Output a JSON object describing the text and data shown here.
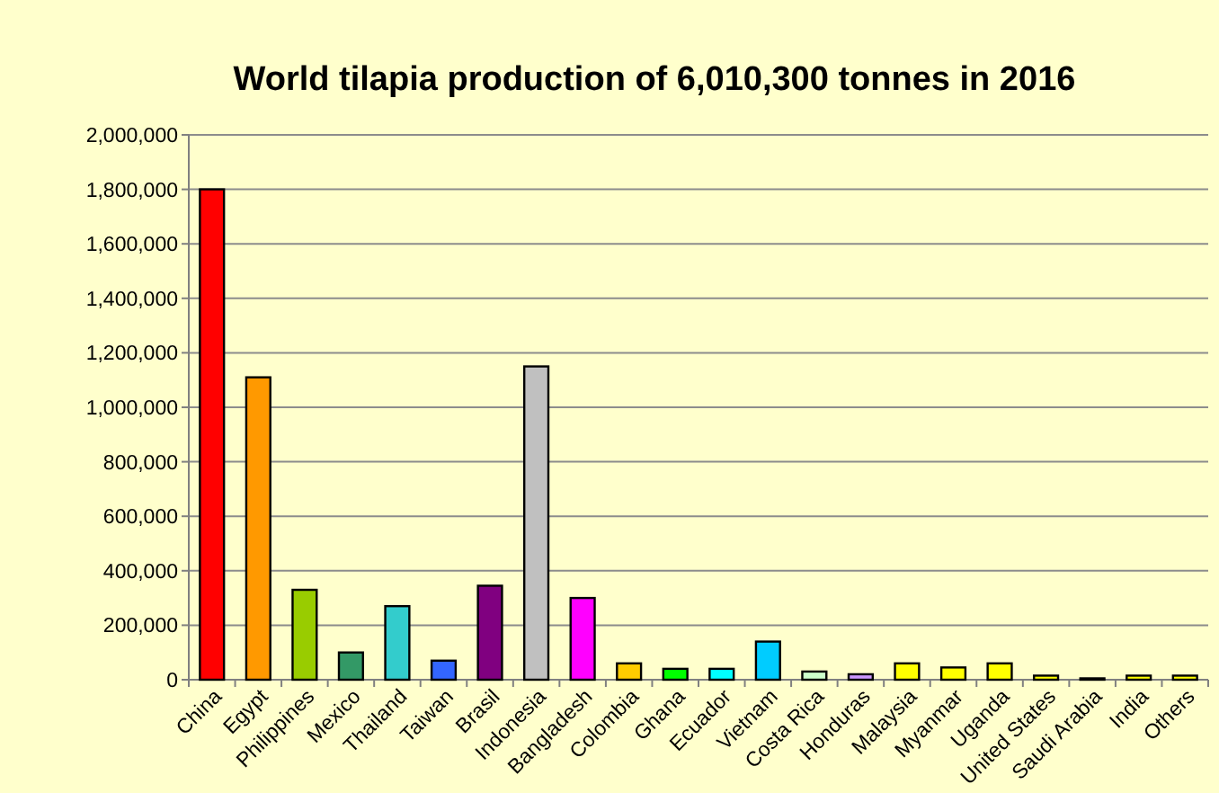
{
  "chart_data": {
    "type": "bar",
    "title": "World tilapia production of 6,010,300 tonnes in 2016",
    "categories": [
      "China",
      "Egypt",
      "Philippines",
      "Mexico",
      "Thailand",
      "Taiwan",
      "Brasil",
      "Indonesia",
      "Bangladesh",
      "Colombia",
      "Ghana",
      "Ecuador",
      "Vietnam",
      "Costa Rica",
      "Honduras",
      "Malaysia",
      "Myanmar",
      "Uganda",
      "United States",
      "Saudi Arabia",
      "India",
      "Others"
    ],
    "values": [
      1800000,
      1110000,
      330000,
      100000,
      270000,
      70000,
      345000,
      1150000,
      300000,
      60000,
      40000,
      40000,
      140000,
      30000,
      20000,
      60000,
      45000,
      60000,
      15000,
      5000,
      15000,
      15000
    ],
    "colors": [
      "#ff0000",
      "#ff9900",
      "#99cc00",
      "#339966",
      "#33cccc",
      "#3366ff",
      "#800080",
      "#c0c0c0",
      "#ff00ff",
      "#ffcc00",
      "#00ff00",
      "#00ffff",
      "#00ccff",
      "#ccffcc",
      "#cc99ff",
      "#ffff00",
      "#ffff00",
      "#ffff00",
      "#ffff00",
      "#ffff00",
      "#ffff00",
      "#ffff00"
    ],
    "ylim": [
      0,
      2000000
    ],
    "yticks": [
      {
        "value": 0,
        "label": "0"
      },
      {
        "value": 200000,
        "label": "200,000"
      },
      {
        "value": 400000,
        "label": "400,000"
      },
      {
        "value": 600000,
        "label": "600,000"
      },
      {
        "value": 800000,
        "label": "800,000"
      },
      {
        "value": 1000000,
        "label": "1,000,000"
      },
      {
        "value": 1200000,
        "label": "1,200,000"
      },
      {
        "value": 1400000,
        "label": "1,400,000"
      },
      {
        "value": 1600000,
        "label": "1,600,000"
      },
      {
        "value": 1800000,
        "label": "1,800,000"
      },
      {
        "value": 2000000,
        "label": "2,000,000"
      }
    ],
    "grid": "y"
  }
}
